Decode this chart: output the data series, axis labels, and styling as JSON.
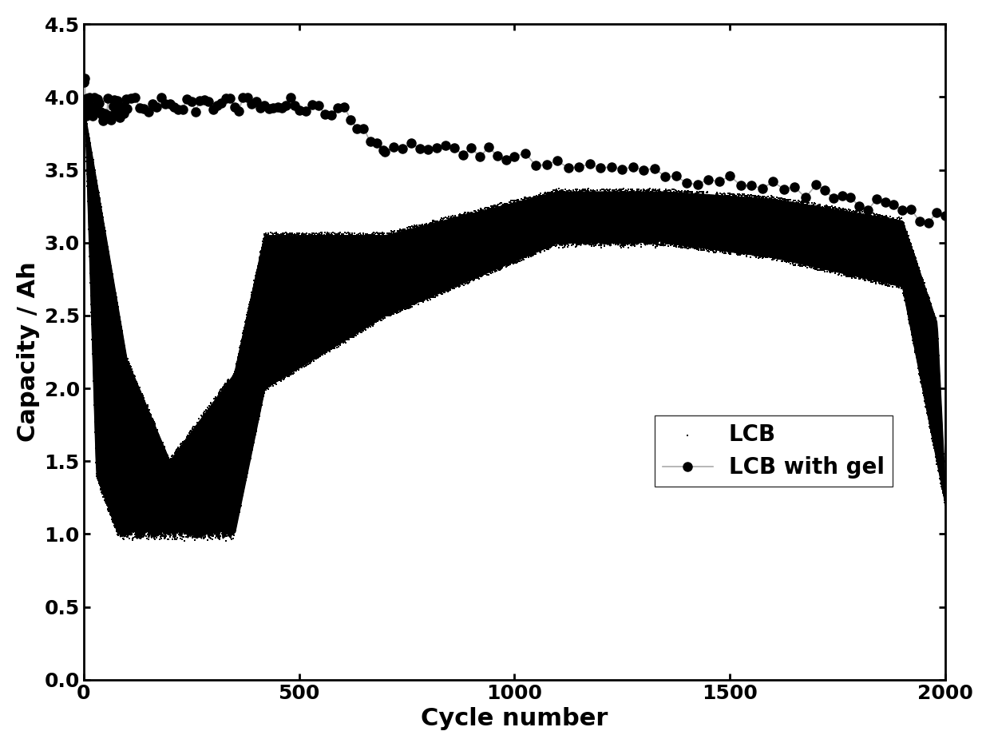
{
  "title": "",
  "xlabel": "Cycle number",
  "ylabel": "Capacity / Ah",
  "xlim": [
    0,
    2000
  ],
  "ylim": [
    0.0,
    4.5
  ],
  "yticks": [
    0.0,
    0.5,
    1.0,
    1.5,
    2.0,
    2.5,
    3.0,
    3.5,
    4.0,
    4.5
  ],
  "xticks": [
    0,
    500,
    1000,
    1500,
    2000
  ],
  "legend_labels": [
    "LCB",
    "LCB with gel"
  ],
  "lcb_color": "#000000",
  "lcb_gel_line_color": "#aaaaaa",
  "lcb_gel_marker_color": "#000000",
  "background_color": "#ffffff",
  "font_size": 18,
  "label_font_size": 22,
  "legend_font_size": 18
}
